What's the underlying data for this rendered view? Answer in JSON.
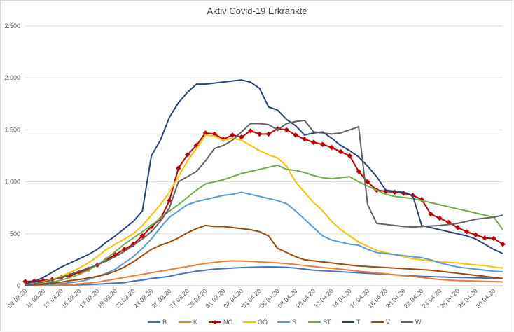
{
  "chart_data": {
    "type": "line",
    "title": "Aktiv Covid-19 Erkrankte",
    "xlabel": "",
    "ylabel": "",
    "ylim": [
      0,
      2500
    ],
    "yticks": [
      0,
      500,
      1000,
      1500,
      2000,
      2500
    ],
    "ytick_labels": [
      "0",
      "500",
      "1.000",
      "1.500",
      "2.000",
      "2.500"
    ],
    "grid": true,
    "legend_position": "bottom",
    "x": [
      "09.03.20",
      "10.03.20",
      "11.03.20",
      "12.03.20",
      "13.03.20",
      "14.03.20",
      "15.03.20",
      "16.03.20",
      "17.03.20",
      "18.03.20",
      "19.03.20",
      "20.03.20",
      "21.03.20",
      "22.03.20",
      "23.03.20",
      "24.03.20",
      "25.03.20",
      "26.03.20",
      "27.03.20",
      "28.03.20",
      "29.03.20",
      "30.03.20",
      "31.03.20",
      "01.04.20",
      "02.04.20",
      "03.04.20",
      "04.04.20",
      "05.04.20",
      "06.04.20",
      "07.04.20",
      "08.04.20",
      "09.04.20",
      "10.04.20",
      "11.04.20",
      "12.04.20",
      "13.04.20",
      "14.04.20",
      "15.04.20",
      "16.04.20",
      "17.04.20",
      "18.04.20",
      "19.04.20",
      "20.04.20",
      "21.04.20",
      "22.04.20",
      "23.04.20",
      "24.04.20",
      "25.04.20",
      "26.04.20",
      "27.04.20",
      "28.04.20",
      "29.04.20",
      "30.04.20",
      "01.05.20"
    ],
    "x_tick_labels": [
      "09.03.20",
      "11.03.20",
      "13.03.20",
      "15.03.20",
      "17.03.20",
      "19.03.20",
      "21.03.20",
      "23.03.20",
      "25.03.20",
      "27.03.20",
      "29.03.20",
      "31.03.20",
      "02.04.20",
      "04.04.20",
      "06.04.20",
      "08.04.20",
      "10.04.20",
      "12.04.20",
      "14.04.20",
      "16.04.20",
      "18.04.20",
      "20.04.20",
      "22.04.20",
      "24.04.20",
      "26.04.20",
      "28.04.20",
      "30.04.20"
    ],
    "series": [
      {
        "name": "B",
        "color": "#4472c4",
        "marker": "none",
        "values": [
          2,
          3,
          4,
          5,
          6,
          8,
          10,
          12,
          15,
          20,
          25,
          30,
          45,
          55,
          70,
          80,
          90,
          110,
          125,
          140,
          150,
          160,
          165,
          170,
          175,
          178,
          180,
          182,
          180,
          178,
          170,
          160,
          150,
          145,
          140,
          135,
          130,
          125,
          120,
          115,
          110,
          105,
          100,
          95,
          90,
          88,
          85,
          82,
          80,
          78,
          76,
          74,
          72,
          70
        ]
      },
      {
        "name": "K",
        "color": "#ed7d31",
        "marker": "none",
        "values": [
          2,
          3,
          4,
          6,
          8,
          12,
          18,
          25,
          35,
          50,
          65,
          80,
          95,
          110,
          125,
          140,
          155,
          170,
          185,
          200,
          215,
          225,
          235,
          240,
          238,
          235,
          230,
          225,
          220,
          215,
          205,
          195,
          185,
          175,
          168,
          160,
          150,
          140,
          132,
          125,
          115,
          105,
          95,
          88,
          80,
          70,
          60,
          55,
          50,
          48,
          45,
          42,
          40,
          38
        ]
      },
      {
        "name": "NÖ",
        "color": "#c00000",
        "marker": "diamond",
        "values": [
          40,
          45,
          50,
          60,
          80,
          100,
          130,
          160,
          200,
          250,
          300,
          350,
          400,
          480,
          570,
          640,
          820,
          1130,
          1260,
          1350,
          1470,
          1460,
          1410,
          1450,
          1430,
          1490,
          1460,
          1460,
          1510,
          1500,
          1450,
          1410,
          1380,
          1360,
          1330,
          1290,
          1250,
          1100,
          1000,
          920,
          910,
          900,
          890,
          870,
          830,
          690,
          650,
          610,
          560,
          520,
          490,
          460,
          455,
          400
        ]
      },
      {
        "name": "OÖ",
        "color": "#ffc000",
        "marker": "none",
        "values": [
          10,
          20,
          40,
          60,
          90,
          130,
          170,
          220,
          280,
          350,
          400,
          450,
          500,
          580,
          680,
          780,
          900,
          1050,
          1200,
          1320,
          1450,
          1440,
          1400,
          1420,
          1400,
          1350,
          1300,
          1260,
          1230,
          1150,
          1000,
          900,
          800,
          720,
          620,
          540,
          480,
          420,
          380,
          340,
          320,
          300,
          280,
          260,
          250,
          240,
          230,
          225,
          220,
          210,
          200,
          195,
          180,
          170
        ]
      },
      {
        "name": "S",
        "color": "#5b9bd5",
        "marker": "none",
        "values": [
          2,
          5,
          10,
          15,
          20,
          30,
          40,
          60,
          90,
          120,
          160,
          220,
          280,
          360,
          450,
          560,
          660,
          720,
          780,
          810,
          830,
          850,
          870,
          880,
          900,
          880,
          860,
          840,
          820,
          790,
          720,
          640,
          560,
          480,
          440,
          420,
          400,
          390,
          350,
          320,
          310,
          300,
          290,
          280,
          270,
          250,
          220,
          200,
          180,
          170,
          160,
          150,
          140,
          135
        ]
      },
      {
        "name": "ST",
        "color": "#70ad47",
        "marker": "none",
        "values": [
          5,
          10,
          20,
          35,
          55,
          80,
          110,
          150,
          200,
          260,
          330,
          400,
          460,
          520,
          580,
          650,
          720,
          780,
          850,
          920,
          980,
          1000,
          1020,
          1050,
          1080,
          1100,
          1120,
          1140,
          1160,
          1120,
          1110,
          1090,
          1060,
          1040,
          1030,
          1040,
          1050,
          1000,
          960,
          920,
          880,
          860,
          850,
          840,
          820,
          800,
          780,
          760,
          740,
          720,
          700,
          680,
          660,
          540
        ]
      },
      {
        "name": "T",
        "color": "#264478",
        "marker": "none",
        "values": [
          20,
          40,
          80,
          130,
          180,
          220,
          260,
          300,
          350,
          420,
          480,
          550,
          620,
          720,
          1250,
          1400,
          1620,
          1760,
          1860,
          1940,
          1940,
          1950,
          1960,
          1970,
          1980,
          1960,
          1900,
          1720,
          1690,
          1600,
          1540,
          1450,
          1470,
          1480,
          1420,
          1350,
          1300,
          1240,
          1150,
          1050,
          920,
          910,
          900,
          870,
          580,
          560,
          540,
          520,
          500,
          480,
          450,
          400,
          350,
          310
        ]
      },
      {
        "name": "V",
        "color": "#9e480e",
        "marker": "none",
        "values": [
          5,
          10,
          15,
          25,
          35,
          50,
          60,
          75,
          90,
          110,
          140,
          180,
          230,
          290,
          350,
          390,
          420,
          460,
          510,
          550,
          580,
          570,
          570,
          560,
          550,
          540,
          520,
          480,
          360,
          320,
          280,
          250,
          240,
          230,
          220,
          210,
          200,
          190,
          185,
          180,
          175,
          170,
          165,
          160,
          155,
          150,
          140,
          130,
          120,
          110,
          100,
          90,
          80,
          70
        ]
      },
      {
        "name": "W",
        "color": "#636363",
        "marker": "none",
        "values": [
          10,
          20,
          35,
          55,
          80,
          110,
          140,
          170,
          200,
          240,
          280,
          330,
          390,
          450,
          520,
          620,
          750,
          1000,
          1050,
          1100,
          1200,
          1320,
          1350,
          1400,
          1480,
          1560,
          1560,
          1550,
          1500,
          1560,
          1580,
          1590,
          1480,
          1470,
          1460,
          1470,
          1500,
          1530,
          780,
          600,
          590,
          580,
          570,
          565,
          570,
          575,
          580,
          590,
          600,
          620,
          640,
          650,
          660,
          680
        ]
      }
    ]
  }
}
